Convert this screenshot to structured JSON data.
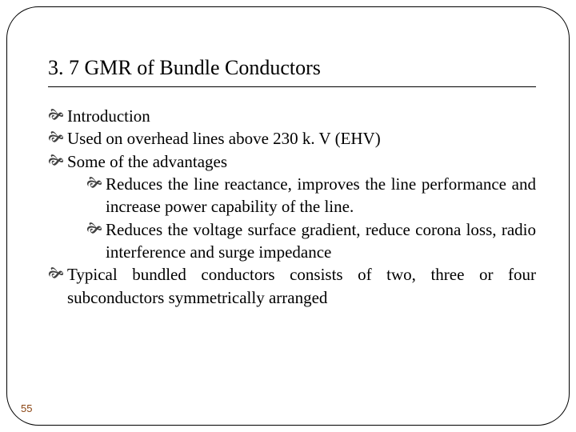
{
  "slide": {
    "title": "3. 7 GMR of Bundle Conductors",
    "page_number": "55",
    "bullets": {
      "b0": "Introduction",
      "b1": "Used on overhead lines above 230 k. V (EHV)",
      "b2": "Some of the advantages",
      "b3": "Typical bundled conductors consists of two, three or four subconductors symmetrically arranged",
      "sub0": "Reduces the line reactance, improves the line performance and increase power capability of the line.",
      "sub1": "Reduces the voltage surface gradient, reduce corona loss, radio interference and surge impedance"
    }
  },
  "style": {
    "frame_border_color": "#000000",
    "frame_border_radius": 40,
    "background_color": "#ffffff",
    "title_fontsize": 26,
    "body_fontsize": 21,
    "bullet_glyph": "ὥE",
    "page_number_color": "#8b4513",
    "font_family": "Times New Roman"
  }
}
